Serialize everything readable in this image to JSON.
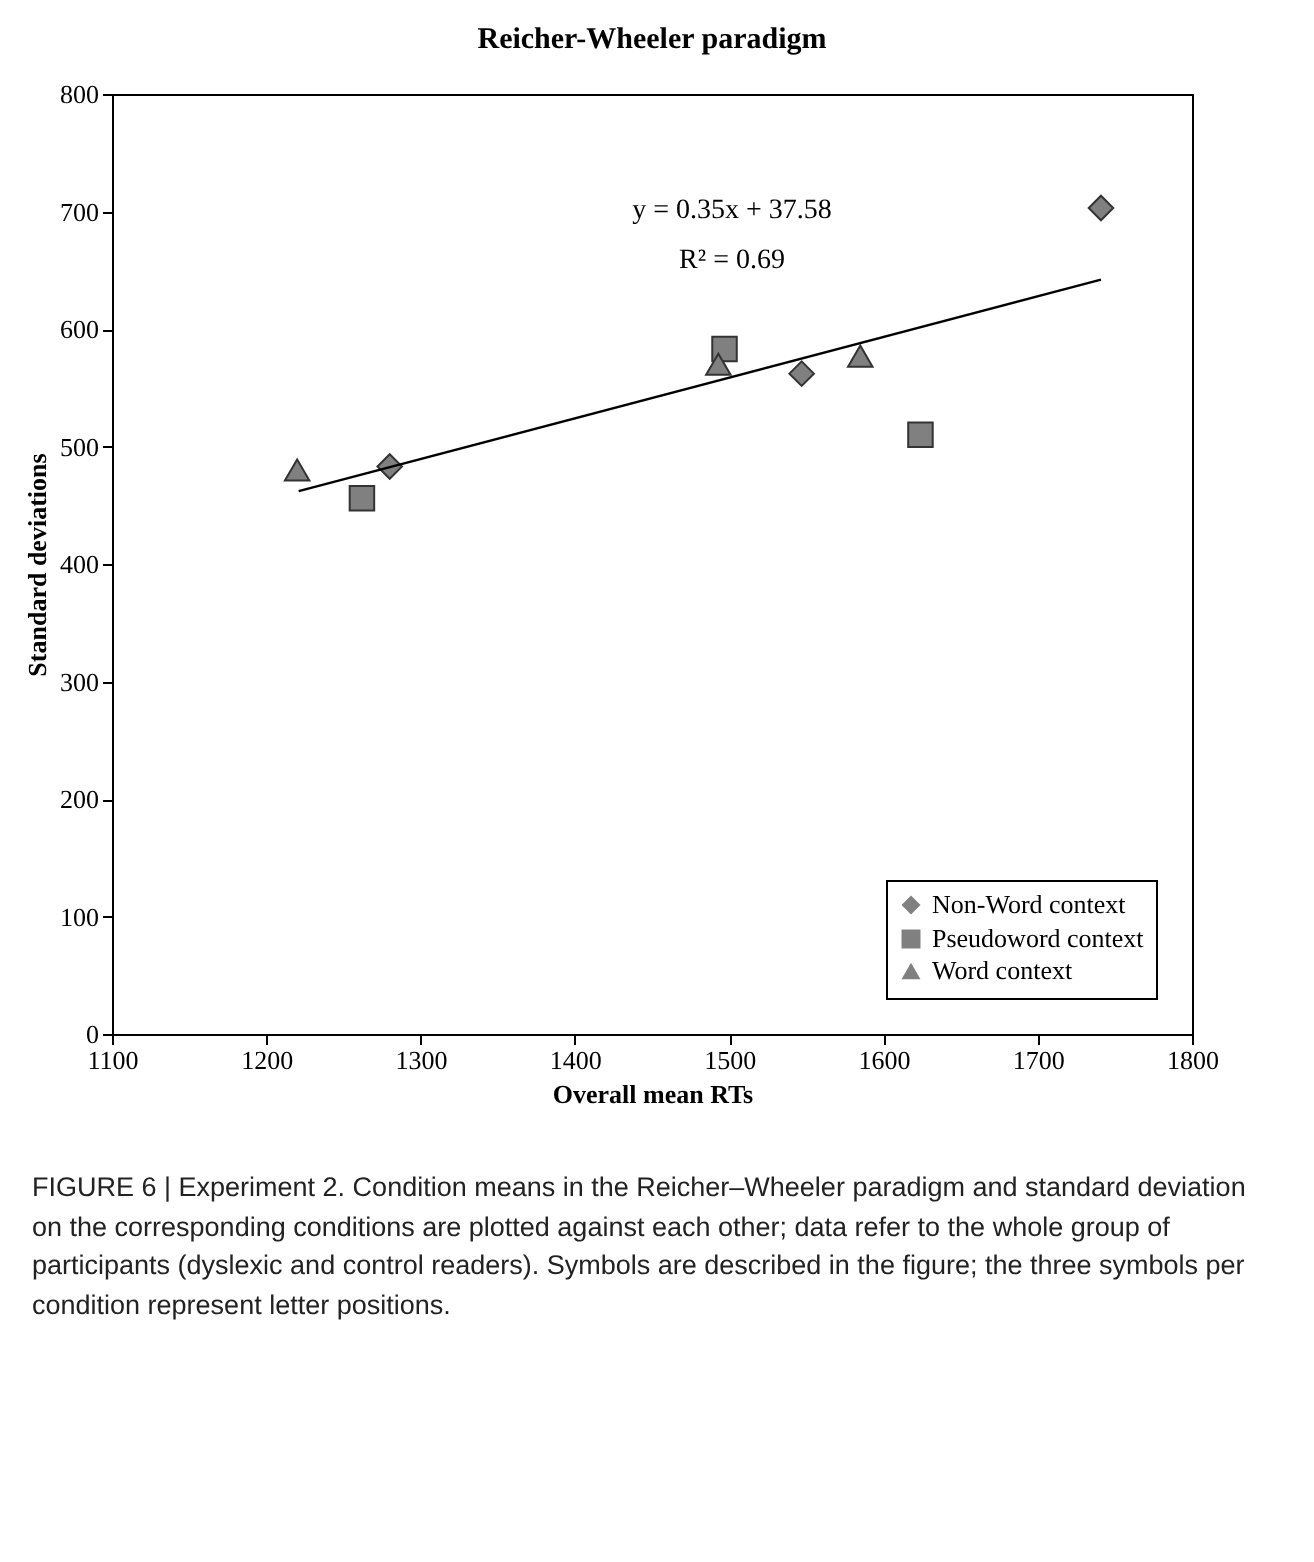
{
  "chart_data": {
    "type": "scatter",
    "title": "Reicher-Wheeler paradigm",
    "xlabel": "Overall mean RTs",
    "ylabel": "Standard deviations",
    "xlim": [
      1100,
      1800
    ],
    "xticks": [
      1100,
      1200,
      1300,
      1400,
      1500,
      1600,
      1700,
      1800
    ],
    "ylim": [
      0,
      800
    ],
    "yticks": [
      0,
      100,
      200,
      300,
      400,
      500,
      600,
      700,
      800
    ],
    "grid": false,
    "legend": "bottom right",
    "series": [
      {
        "name": "Non-Word context",
        "color": "#808080",
        "marker": "diamond",
        "x": [
          1280,
          1547,
          1741
        ],
        "values": [
          483,
          562,
          703
        ]
      },
      {
        "name": "Pseudoword context",
        "color": "#808080",
        "marker": "square",
        "x": [
          1262,
          1497,
          1624
        ],
        "values": [
          456,
          583,
          510
        ]
      },
      {
        "name": "Word context",
        "color": "#808080",
        "marker": "triangle",
        "x": [
          1220,
          1493,
          1585
        ],
        "values": [
          480,
          570,
          577
        ]
      },
      {
        "type": "line",
        "color": "#000000",
        "marker": "none",
        "line_style": "solid",
        "x": [
          1221,
          1741
        ],
        "values": [
          462,
          642
        ]
      }
    ],
    "annotations": [
      "y = 0.35x + 37.58",
      "R² = 0.69",
      "FIGURE 6 | Experiment 2. Condition means in the Reicher–Wheeler paradigm and standard deviation on the corresponding conditions are plotted against each other; data refer to the whole group of participants (dyslexic and control readers). Symbols are described in the figure; the three symbols per condition represent letter positions."
    ]
  }
}
